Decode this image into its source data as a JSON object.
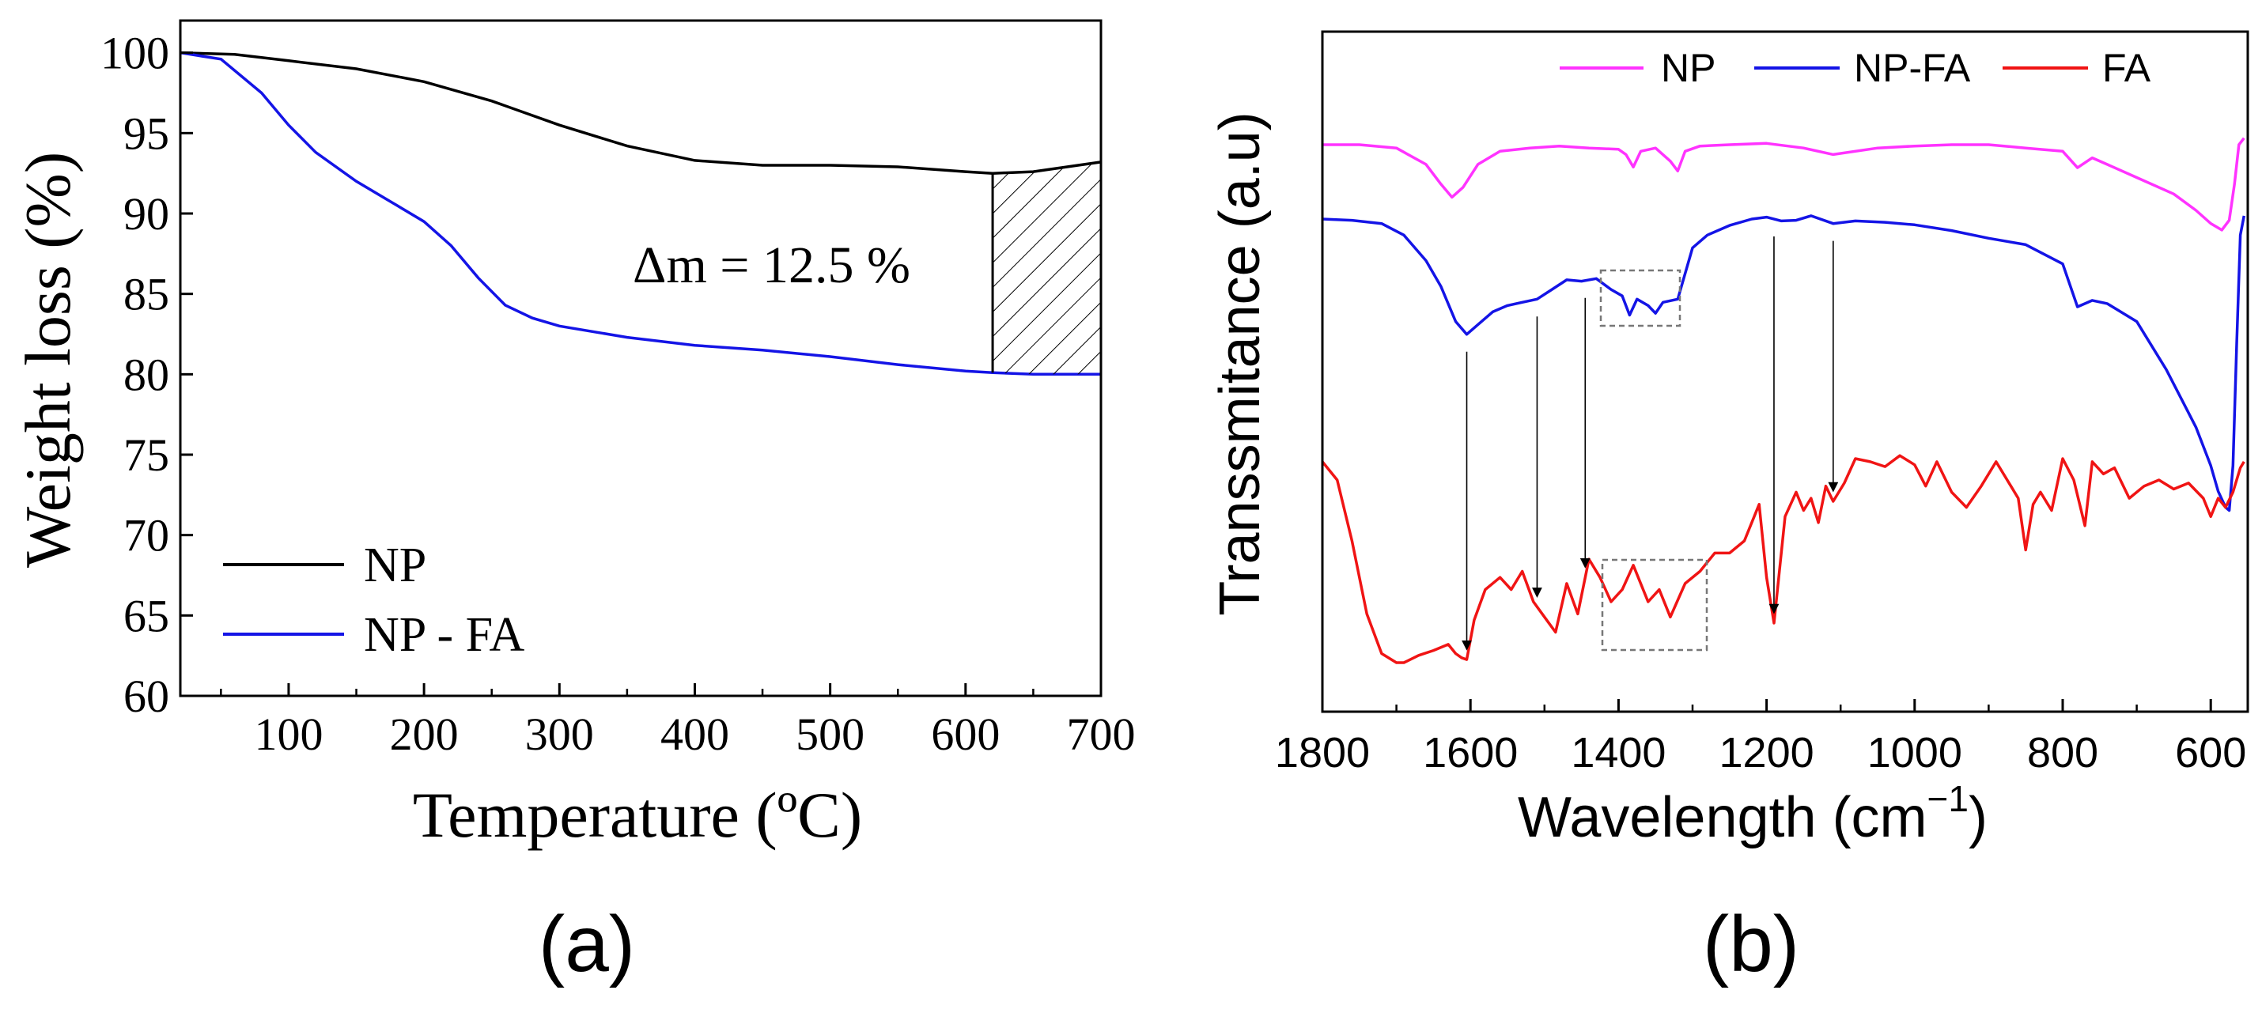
{
  "chart_data": [
    {
      "panel": "(a)",
      "type": "line",
      "xlabel": "Temperature (ºC)",
      "ylabel": "Weight loss (%)",
      "xlim": [
        20,
        700
      ],
      "ylim": [
        60,
        102
      ],
      "xticks": [
        100,
        200,
        300,
        400,
        500,
        600,
        700
      ],
      "yticks": [
        60,
        65,
        70,
        75,
        80,
        85,
        90,
        95,
        100
      ],
      "annotation": "Δm = 12.5 %",
      "shaded_region": {
        "x_from": 620,
        "x_to": 700,
        "between": [
          "NP",
          "NP - FA"
        ]
      },
      "legend_position": "bottom-left",
      "series": [
        {
          "name": "NP",
          "color": "#000000",
          "x": [
            20,
            60,
            100,
            150,
            200,
            250,
            300,
            350,
            400,
            450,
            500,
            550,
            600,
            620,
            650,
            700
          ],
          "y": [
            100,
            99.9,
            99.5,
            99.0,
            98.2,
            97.0,
            95.5,
            94.2,
            93.3,
            93.0,
            93.0,
            92.9,
            92.6,
            92.5,
            92.6,
            93.2
          ]
        },
        {
          "name": "NP - FA",
          "color": "#1414e6",
          "x": [
            20,
            50,
            80,
            100,
            120,
            150,
            180,
            200,
            220,
            240,
            260,
            280,
            300,
            350,
            400,
            450,
            500,
            550,
            600,
            620,
            650,
            700
          ],
          "y": [
            100,
            99.6,
            97.5,
            95.5,
            93.8,
            92.0,
            90.5,
            89.5,
            88.0,
            86.0,
            84.3,
            83.5,
            83.0,
            82.3,
            81.8,
            81.5,
            81.1,
            80.6,
            80.2,
            80.1,
            80.0,
            80.0
          ]
        }
      ]
    },
    {
      "panel": "(b)",
      "type": "line",
      "xlabel": "Wavelength (cm",
      "xlabel_sup": "−1",
      "xlabel_close": ")",
      "ylabel": "Transsmitance (a.u)",
      "xlim": [
        1800,
        550
      ],
      "xticks": [
        1800,
        1600,
        1400,
        1200,
        1000,
        800,
        600
      ],
      "ylim": [
        0,
        100
      ],
      "legend_position": "top",
      "arrows_at_wavenumber": [
        1605,
        1510,
        1445,
        1190,
        1110
      ],
      "series": [
        {
          "name": "NP",
          "color": "#ff33ff",
          "x": [
            1800,
            1750,
            1700,
            1660,
            1640,
            1625,
            1610,
            1590,
            1560,
            1520,
            1480,
            1440,
            1400,
            1390,
            1380,
            1370,
            1350,
            1330,
            1320,
            1310,
            1290,
            1250,
            1200,
            1150,
            1110,
            1050,
            1000,
            950,
            900,
            850,
            800,
            780,
            760,
            740,
            700,
            650,
            620,
            600,
            585,
            575,
            568,
            562,
            555
          ],
          "y": [
            84,
            84,
            83.5,
            81,
            78,
            76,
            77.5,
            81,
            83,
            83.5,
            83.8,
            83.5,
            83.3,
            82.5,
            80.6,
            83,
            83.5,
            81.5,
            80,
            83,
            83.8,
            84,
            84.2,
            83.5,
            82.5,
            83.5,
            83.8,
            84,
            84,
            83.5,
            83,
            80.5,
            82,
            81,
            79,
            76.5,
            74,
            72,
            71,
            72.5,
            78,
            84,
            85
          ]
        },
        {
          "name": "NP-FA",
          "color": "#1414e6",
          "x": [
            1800,
            1760,
            1720,
            1690,
            1660,
            1640,
            1620,
            1605,
            1590,
            1570,
            1550,
            1530,
            1510,
            1490,
            1470,
            1450,
            1430,
            1410,
            1395,
            1385,
            1375,
            1360,
            1350,
            1340,
            1320,
            1300,
            1280,
            1250,
            1220,
            1200,
            1180,
            1160,
            1140,
            1110,
            1080,
            1040,
            1000,
            950,
            900,
            850,
            800,
            780,
            760,
            740,
            700,
            660,
            620,
            600,
            590,
            580,
            575,
            570,
            565,
            560,
            555
          ],
          "y": [
            74.5,
            74.3,
            73.8,
            72,
            68,
            64,
            58.5,
            56.5,
            58,
            60,
            61,
            61.5,
            62,
            63.5,
            65,
            64.8,
            65.2,
            63.5,
            62.5,
            59.5,
            62,
            61,
            59.8,
            61.5,
            62,
            70,
            72,
            73.5,
            74.5,
            74.8,
            74.2,
            74.3,
            75,
            73.8,
            74.2,
            74,
            73.6,
            72.7,
            71.5,
            70.5,
            67.5,
            60.8,
            61.8,
            61.3,
            58.5,
            51,
            42,
            36,
            32,
            29.5,
            29,
            36,
            55,
            72,
            75
          ]
        },
        {
          "name": "FA",
          "color": "#f01414",
          "x": [
            1800,
            1780,
            1760,
            1740,
            1720,
            1700,
            1690,
            1670,
            1650,
            1630,
            1620,
            1612,
            1605,
            1595,
            1580,
            1560,
            1545,
            1530,
            1515,
            1500,
            1485,
            1470,
            1455,
            1440,
            1425,
            1410,
            1395,
            1380,
            1360,
            1345,
            1330,
            1310,
            1290,
            1270,
            1250,
            1230,
            1210,
            1200,
            1190,
            1175,
            1160,
            1150,
            1140,
            1130,
            1120,
            1110,
            1095,
            1080,
            1060,
            1040,
            1020,
            1000,
            985,
            970,
            950,
            930,
            910,
            890,
            870,
            860,
            850,
            840,
            830,
            815,
            800,
            785,
            770,
            760,
            745,
            730,
            710,
            690,
            670,
            650,
            630,
            610,
            600,
            590,
            580,
            570,
            560,
            555
          ],
          "y": [
            33,
            30,
            20,
            8,
            1.5,
            0,
            0,
            1.2,
            2,
            3,
            1.5,
            0.8,
            0.5,
            7,
            12,
            14,
            12,
            15,
            10,
            7.5,
            5,
            13,
            8,
            17,
            14,
            10,
            12,
            16,
            10,
            12,
            7.5,
            13,
            15,
            18,
            18,
            20,
            26,
            14,
            6.5,
            24,
            28,
            25,
            27,
            23,
            29,
            26.5,
            29.5,
            33.5,
            33,
            32.2,
            34,
            32.5,
            29,
            33,
            28,
            25.5,
            29,
            33,
            29,
            27,
            18.5,
            26,
            28,
            25,
            33.5,
            30,
            22.5,
            33,
            31,
            32,
            27,
            29,
            30,
            28.5,
            29.5,
            27,
            24,
            27,
            25.5,
            28,
            32,
            33
          ]
        }
      ]
    }
  ],
  "panel_labels": {
    "a": "(a)",
    "b": "(b)"
  }
}
